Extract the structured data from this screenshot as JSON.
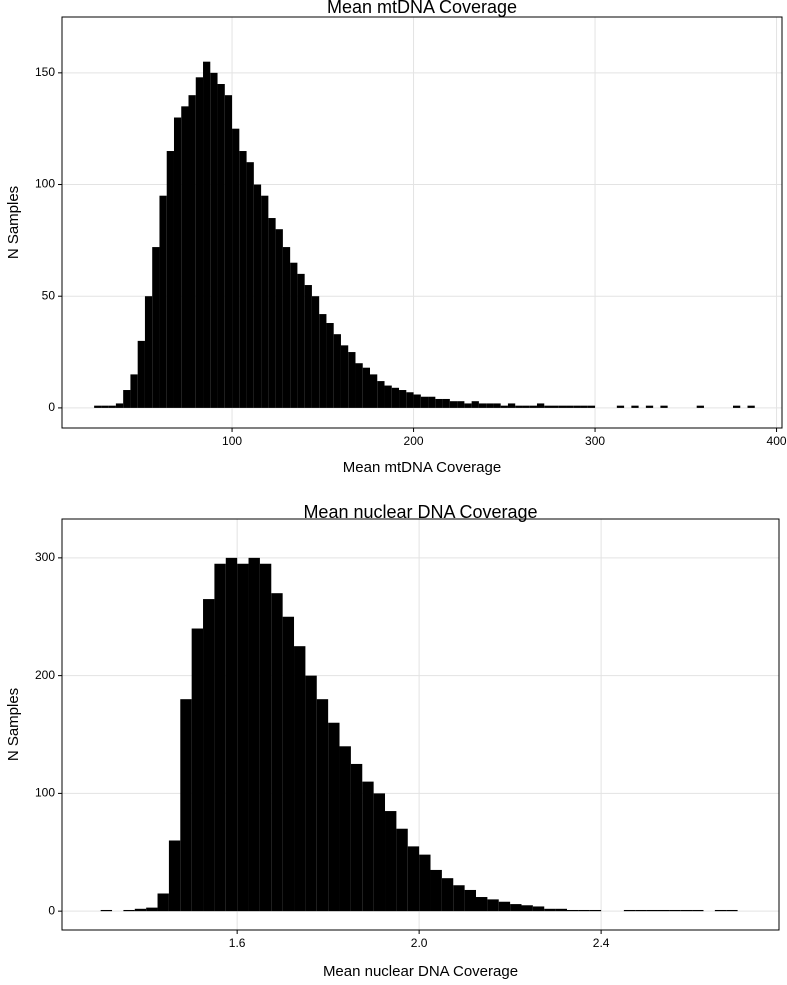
{
  "chart_data": [
    {
      "type": "histogram",
      "title": "Mean mtDNA Coverage",
      "x_label": "Mean mtDNA Coverage",
      "y_label": "N Samples",
      "color": "#000000",
      "grid": true,
      "bins": [
        24,
        28,
        32,
        36,
        40,
        44,
        48,
        52,
        56,
        60,
        64,
        68,
        72,
        76,
        80,
        84,
        88,
        92,
        96,
        100,
        104,
        108,
        112,
        116,
        120,
        124,
        128,
        132,
        136,
        140,
        144,
        148,
        152,
        156,
        160,
        164,
        168,
        172,
        176,
        180,
        184,
        188,
        192,
        196,
        200,
        204,
        208,
        212,
        216,
        220,
        224,
        228,
        232,
        236,
        240,
        244,
        248,
        252,
        256,
        260,
        264,
        268,
        272,
        276,
        280,
        284,
        288,
        292,
        296,
        300,
        304,
        308,
        312,
        316,
        320,
        324,
        328,
        332,
        336,
        340,
        344,
        348,
        352,
        356,
        360,
        364,
        368,
        372,
        376,
        380,
        384,
        388
      ],
      "counts": [
        1,
        1,
        1,
        2,
        8,
        15,
        30,
        50,
        72,
        95,
        115,
        130,
        135,
        140,
        148,
        155,
        150,
        145,
        140,
        125,
        115,
        110,
        100,
        95,
        85,
        80,
        72,
        65,
        60,
        55,
        50,
        42,
        38,
        33,
        28,
        25,
        20,
        18,
        15,
        12,
        10,
        9,
        8,
        7,
        6,
        5,
        5,
        4,
        4,
        3,
        3,
        2,
        3,
        2,
        2,
        2,
        1,
        2,
        1,
        1,
        1,
        2,
        1,
        1,
        1,
        1,
        1,
        1,
        1,
        0,
        0,
        0,
        1,
        0,
        1,
        0,
        1,
        0,
        1,
        0,
        0,
        0,
        0,
        1,
        0,
        0,
        0,
        0,
        1,
        0,
        1
      ],
      "xlim": [
        6.3,
        403
      ],
      "ylim": [
        -9,
        175
      ],
      "xticks": [
        100,
        200,
        300,
        400
      ],
      "yticks": [
        0,
        50,
        100,
        150
      ]
    },
    {
      "type": "histogram",
      "title": "Mean nuclear DNA Coverage",
      "x_label": "Mean nuclear DNA Coverage",
      "y_label": "N Samples",
      "color": "#000000",
      "grid": true,
      "bins": [
        1.3,
        1.325,
        1.35,
        1.375,
        1.4,
        1.425,
        1.45,
        1.475,
        1.5,
        1.525,
        1.55,
        1.575,
        1.6,
        1.625,
        1.65,
        1.675,
        1.7,
        1.725,
        1.75,
        1.775,
        1.8,
        1.825,
        1.85,
        1.875,
        1.9,
        1.925,
        1.95,
        1.975,
        2,
        2.025,
        2.05,
        2.075,
        2.1,
        2.125,
        2.15,
        2.175,
        2.2,
        2.225,
        2.25,
        2.275,
        2.3,
        2.325,
        2.35,
        2.375,
        2.4,
        2.425,
        2.45,
        2.475,
        2.5,
        2.525,
        2.55,
        2.575,
        2.6,
        2.625,
        2.65,
        2.675,
        2.7
      ],
      "counts": [
        1,
        0,
        1,
        2,
        3,
        15,
        60,
        180,
        240,
        265,
        295,
        300,
        295,
        300,
        295,
        270,
        250,
        225,
        200,
        180,
        160,
        140,
        125,
        110,
        100,
        85,
        70,
        55,
        48,
        35,
        28,
        22,
        18,
        12,
        10,
        8,
        6,
        5,
        4,
        2,
        2,
        1,
        1,
        1,
        0,
        0,
        1,
        1,
        1,
        1,
        1,
        1,
        1,
        0,
        1,
        1
      ],
      "xlim": [
        1.215,
        2.791
      ],
      "ylim": [
        -16,
        333
      ],
      "xticks": [
        1.6,
        {
          "value": 2,
          "label": "2.0"
        },
        2.4
      ],
      "yticks": [
        0,
        100,
        200,
        300
      ]
    }
  ]
}
